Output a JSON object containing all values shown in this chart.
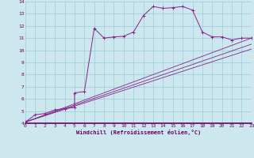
{
  "xlabel": "Windchill (Refroidissement éolien,°C)",
  "bg_color": "#cce8ee",
  "plot_bg_color": "#cce8ee",
  "line_color": "#882288",
  "grid_color": "#99ccdd",
  "axis_line_color": "#660066",
  "xlim": [
    0,
    23
  ],
  "ylim": [
    4,
    14
  ],
  "xticks": [
    0,
    1,
    2,
    3,
    4,
    5,
    6,
    7,
    8,
    9,
    10,
    11,
    12,
    13,
    14,
    15,
    16,
    17,
    18,
    19,
    20,
    21,
    22,
    23
  ],
  "yticks": [
    4,
    5,
    6,
    7,
    8,
    9,
    10,
    11,
    12,
    13,
    14
  ],
  "series": [
    [
      0,
      4.1
    ],
    [
      1,
      4.7
    ],
    [
      2,
      4.8
    ],
    [
      3,
      5.1
    ],
    [
      4,
      5.2
    ],
    [
      5,
      5.3
    ],
    [
      5,
      6.5
    ],
    [
      6,
      6.6
    ],
    [
      7,
      11.8
    ],
    [
      8,
      11.0
    ],
    [
      9,
      11.1
    ],
    [
      10,
      11.15
    ],
    [
      11,
      11.5
    ],
    [
      12,
      12.85
    ],
    [
      13,
      13.6
    ],
    [
      14,
      13.45
    ],
    [
      15,
      13.5
    ],
    [
      16,
      13.6
    ],
    [
      17,
      13.3
    ],
    [
      18,
      11.5
    ],
    [
      19,
      11.1
    ],
    [
      20,
      11.1
    ],
    [
      21,
      10.85
    ],
    [
      22,
      11.0
    ],
    [
      23,
      11.0
    ]
  ],
  "line2": [
    [
      0,
      4.1
    ],
    [
      23,
      11.0
    ]
  ],
  "line3": [
    [
      0,
      4.1
    ],
    [
      23,
      10.5
    ]
  ],
  "line4": [
    [
      0,
      4.1
    ],
    [
      23,
      10.1
    ]
  ]
}
